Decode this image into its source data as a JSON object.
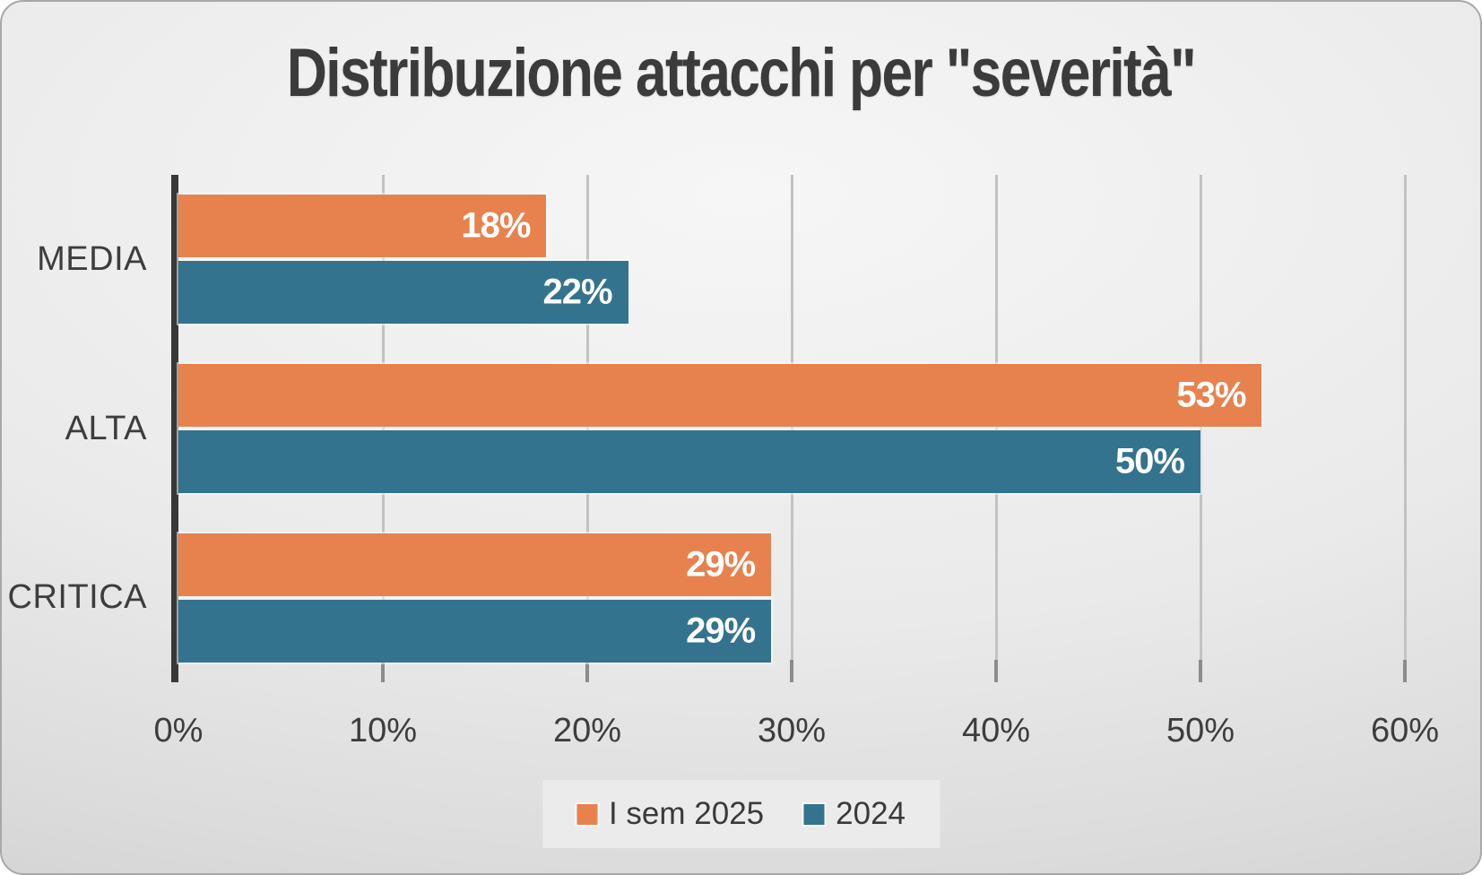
{
  "chart_data": {
    "type": "bar",
    "orientation": "horizontal",
    "title": "Distribuzione attacchi per \"severità\"",
    "categories": [
      "MEDIA",
      "ALTA",
      "CRITICA"
    ],
    "categories_order": "top-to-bottom",
    "series": [
      {
        "name": "I sem 2025",
        "color": "#E7824E",
        "values": [
          18,
          53,
          29
        ]
      },
      {
        "name": "2024",
        "color": "#34738E",
        "values": [
          22,
          50,
          29
        ]
      }
    ],
    "value_labels": [
      [
        "18%",
        "22%"
      ],
      [
        "53%",
        "50%"
      ],
      [
        "29%",
        "29%"
      ]
    ],
    "x_ticks": [
      "0%",
      "10%",
      "20%",
      "30%",
      "40%",
      "50%",
      "60%"
    ],
    "xlim": [
      0,
      60
    ],
    "grid": true,
    "legend_position": "bottom",
    "styles": {
      "axis_line_color": "#383838",
      "gridline_color": "#C2C2C2",
      "tick_color": "#8C8C8C",
      "label_text_color": "#3D3D3D",
      "value_label_color": "#FFFFFF",
      "title_color": "#3B3B3B"
    }
  },
  "legend": {
    "items": [
      {
        "label": "I sem 2025",
        "color": "#E7824E"
      },
      {
        "label": "2024",
        "color": "#34738E"
      }
    ]
  }
}
